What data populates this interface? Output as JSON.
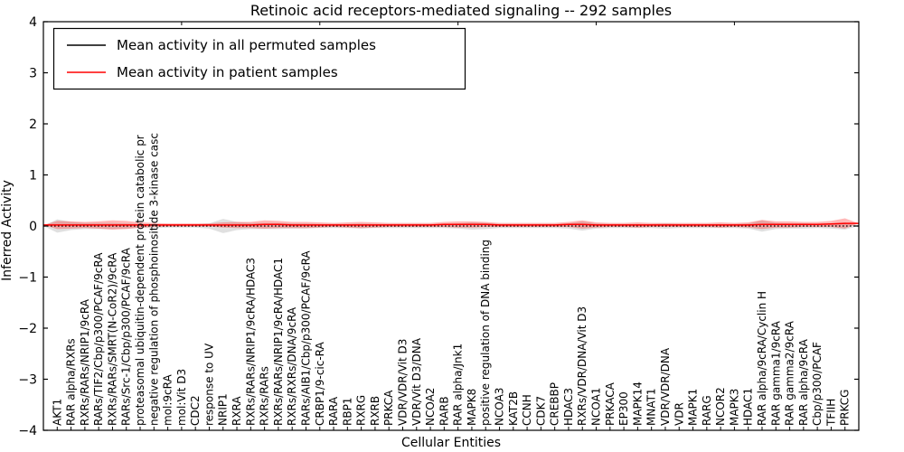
{
  "chart_data": {
    "type": "line",
    "title": "Retinoic acid receptors-mediated signaling -- 292 samples",
    "xlabel": "Cellular Entities",
    "ylabel": "Inferred Activity",
    "ylim": [
      -4,
      4
    ],
    "grid": false,
    "legend_position": "upper-left",
    "ytick_labels": [
      "4",
      "3",
      "2",
      "1",
      "0",
      "−1",
      "−2",
      "−3",
      "−4"
    ],
    "ytick_values": [
      4,
      3,
      2,
      1,
      0,
      -1,
      -2,
      -3,
      -4
    ],
    "categories": [
      "AKT1",
      "RAR alpha/RXRs",
      "RXRs/RARs/NRIP1/9cRA",
      "RARs/TIF2/Cbp/p300/PCAF/9cRA",
      "RXRs/RARs/SMRT(N-CoR2)/9cRA",
      "RARs/Src-1/Cbp/p300/PCAF/9cRA",
      "proteasomal ubiquitin-dependent protein catabolic pr",
      "negative regulation of phosphoinositide 3-kinase casc",
      "mol:9cRA",
      "mol:Vit D3",
      "CDC2",
      "response to UV",
      "NRIP1",
      "RXRA",
      "RXRs/RARs/NRIP1/9cRA/HDAC3",
      "RXRs/RARs",
      "RXRs/RARs/NRIP1/9cRA/HDAC1",
      "RXRs/RXRs/DNA/9cRA",
      "RARs/AIB1/Cbp/p300/PCAF/9cRA",
      "CRBP1/9-cic-RA",
      "RARA",
      "RBP1",
      "RXRG",
      "RXRB",
      "PRKCA",
      "VDR/VDR/Vit D3",
      "VDR/Vit D3/DNA",
      "NCOA2",
      "RARB",
      "RAR alpha/Jnk1",
      "MAPK8",
      "positive regulation of DNA binding",
      "NCOA3",
      "KAT2B",
      "CCNH",
      "CDK7",
      "CREBBP",
      "HDAC3",
      "RXRs/VDR/DNA/Vit D3",
      "NCOA1",
      "PRKACA",
      "EP300",
      "MAPK14",
      "MNAT1",
      "VDR/VDR/DNA",
      "VDR",
      "MAPK1",
      "RARG",
      "NCOR2",
      "MAPK3",
      "HDAC1",
      "RAR alpha/9cRA/Cyclin H",
      "RAR gamma1/9cRA",
      "RAR gamma2/9cRA",
      "RAR alpha/9cRA",
      "Cbp/p300/PCAF",
      "TFIIH",
      "PRKCG"
    ],
    "series": [
      {
        "name": "Mean activity in all permuted samples",
        "color": "#000000",
        "line_style": "dotted",
        "band_color": "rgba(130,130,130,0.25)",
        "means": [
          0,
          0,
          0,
          0,
          0,
          0,
          0,
          0,
          0,
          0,
          0,
          0,
          0,
          0,
          0,
          0,
          0,
          0,
          0,
          0,
          0,
          0,
          0,
          0,
          0,
          0,
          0,
          0,
          0,
          0,
          0,
          0,
          0,
          0,
          0,
          0,
          0,
          0,
          0,
          0,
          0,
          0,
          0,
          0,
          0,
          0,
          0,
          0,
          0,
          0,
          0,
          0,
          0,
          0,
          0,
          0,
          0,
          0
        ],
        "spread": [
          0.13,
          0.08,
          0.06,
          0.06,
          0.06,
          0.05,
          0.04,
          0.04,
          0.03,
          0.03,
          0.03,
          0.05,
          0.14,
          0.08,
          0.06,
          0.06,
          0.06,
          0.05,
          0.05,
          0.04,
          0.04,
          0.04,
          0.05,
          0.04,
          0.04,
          0.04,
          0.04,
          0.04,
          0.04,
          0.05,
          0.07,
          0.06,
          0.04,
          0.04,
          0.04,
          0.04,
          0.04,
          0.05,
          0.09,
          0.05,
          0.04,
          0.04,
          0.04,
          0.04,
          0.05,
          0.04,
          0.04,
          0.04,
          0.04,
          0.04,
          0.05,
          0.11,
          0.06,
          0.05,
          0.05,
          0.04,
          0.05,
          0.07
        ]
      },
      {
        "name": "Mean activity in patient samples",
        "color": "#ff0000",
        "line_style": "solid",
        "band_color": "rgba(255,0,0,0.28)",
        "means": [
          0.02,
          0.02,
          0.02,
          0.02,
          0.02,
          0.02,
          0.02,
          0.02,
          0.02,
          0.02,
          0.02,
          0.02,
          0.02,
          0.02,
          0.02,
          0.03,
          0.03,
          0.02,
          0.02,
          0.02,
          0.02,
          0.02,
          0.02,
          0.02,
          0.02,
          0.02,
          0.02,
          0.02,
          0.03,
          0.03,
          0.03,
          0.03,
          0.02,
          0.02,
          0.02,
          0.02,
          0.02,
          0.03,
          0.03,
          0.02,
          0.02,
          0.02,
          0.02,
          0.02,
          0.02,
          0.02,
          0.02,
          0.02,
          0.02,
          0.02,
          0.02,
          0.03,
          0.03,
          0.03,
          0.03,
          0.03,
          0.04,
          0.05
        ],
        "spread": [
          0.08,
          0.07,
          0.06,
          0.07,
          0.09,
          0.08,
          0.05,
          0.04,
          0.03,
          0.03,
          0.03,
          0.03,
          0.05,
          0.06,
          0.06,
          0.08,
          0.07,
          0.06,
          0.06,
          0.05,
          0.04,
          0.05,
          0.06,
          0.05,
          0.04,
          0.04,
          0.04,
          0.04,
          0.05,
          0.06,
          0.06,
          0.05,
          0.04,
          0.04,
          0.04,
          0.04,
          0.04,
          0.05,
          0.08,
          0.05,
          0.04,
          0.04,
          0.05,
          0.04,
          0.04,
          0.04,
          0.04,
          0.04,
          0.05,
          0.04,
          0.05,
          0.09,
          0.06,
          0.06,
          0.05,
          0.05,
          0.06,
          0.1
        ]
      }
    ]
  }
}
